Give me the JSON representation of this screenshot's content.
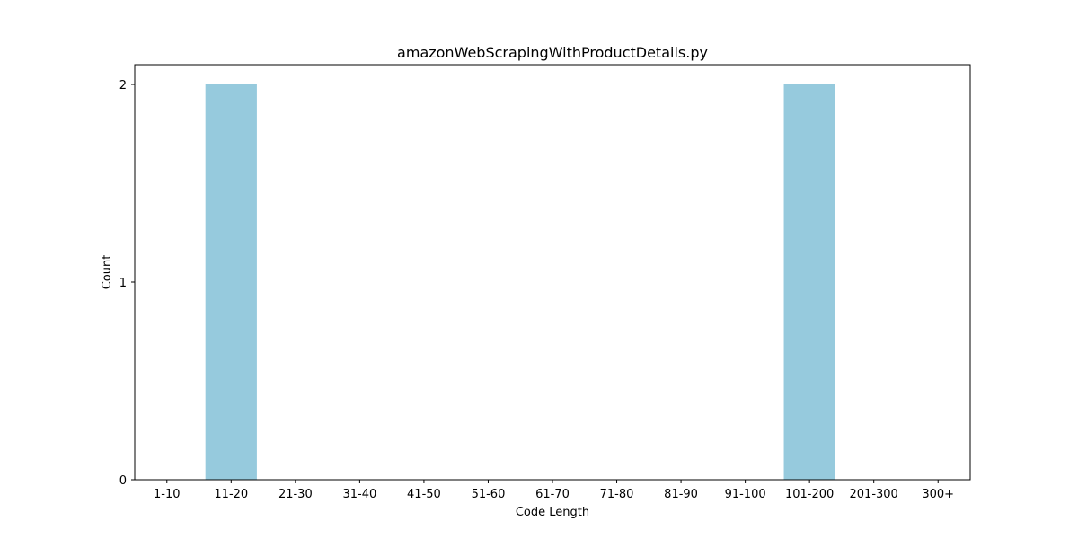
{
  "chart_data": {
    "type": "bar",
    "title": "amazonWebScrapingWithProductDetails.py",
    "xlabel": "Code Length",
    "ylabel": "Count",
    "categories": [
      "1-10",
      "11-20",
      "21-30",
      "31-40",
      "41-50",
      "51-60",
      "61-70",
      "71-80",
      "81-90",
      "91-100",
      "101-200",
      "201-300",
      "300+"
    ],
    "values": [
      0,
      2,
      0,
      0,
      0,
      0,
      0,
      0,
      0,
      0,
      2,
      0,
      0
    ],
    "ylim": [
      0,
      2.1
    ],
    "yticks": [
      0,
      1,
      2
    ],
    "grid": false,
    "legend": "none",
    "bar_color": "#96cadd"
  }
}
